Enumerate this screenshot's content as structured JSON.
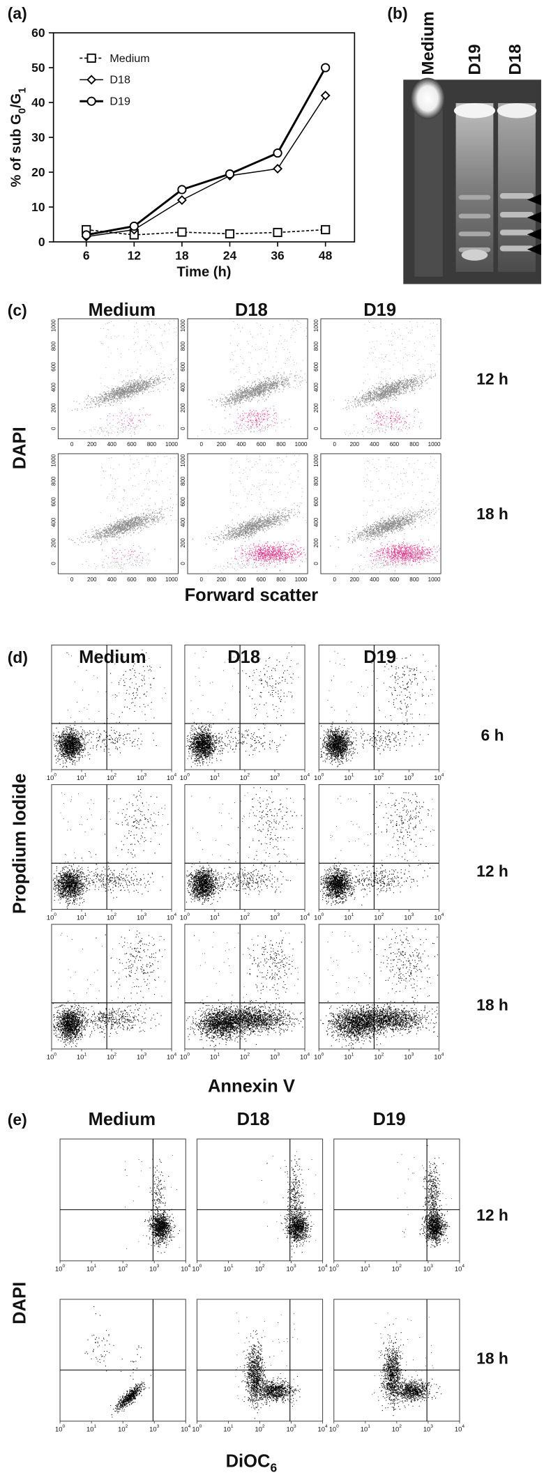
{
  "chart_data": {
    "type": "line",
    "panel_label": "(a)",
    "x_label": "Time (h)",
    "y_label": {
      "text": "% of sub G",
      "sub1": "0",
      "mid": "/G",
      "sub2": "1"
    },
    "categories": [
      "6",
      "12",
      "18",
      "24",
      "36",
      "48"
    ],
    "series": [
      {
        "name": "Medium",
        "color": "#000000",
        "marker": "square",
        "dash": true,
        "values": [
          3.5,
          2,
          2.8,
          2.3,
          2.7,
          3.5
        ]
      },
      {
        "name": "D18",
        "color": "#000000",
        "marker": "diamond",
        "dash": false,
        "values": [
          1.5,
          3.5,
          12,
          19,
          21,
          42
        ]
      },
      {
        "name": "D19",
        "color": "#000000",
        "marker": "circle",
        "dash": false,
        "values": [
          2,
          4.5,
          15,
          19.5,
          25.5,
          50
        ]
      }
    ],
    "ylim": [
      0,
      60
    ],
    "yticks": [
      0,
      10,
      20,
      30,
      40,
      50,
      60
    ],
    "grid": false,
    "legend": "upper left"
  },
  "gel": {
    "panel_label": "(b)",
    "lanes": [
      "Medium",
      "D19",
      "D18"
    ]
  },
  "dapi_fsc": {
    "panel_label": "(c)",
    "conditions": [
      "Medium",
      "D18",
      "D19"
    ],
    "times": [
      "12 h",
      "18 h"
    ],
    "y_label": "DAPI",
    "x_label": "Forward scatter",
    "ticks": [
      "0",
      "200",
      "400",
      "600",
      "800",
      "1000"
    ]
  },
  "annexin_pi": {
    "panel_label": "(d)",
    "conditions": [
      "Medium",
      "D18",
      "D19"
    ],
    "times": [
      "6 h",
      "12 h",
      "18 h"
    ],
    "y_label": "Propdium Iodide",
    "x_label": "Annexin V",
    "tick_base": "10",
    "tick_exponents": [
      "0",
      "1",
      "2",
      "3",
      "4"
    ]
  },
  "dioc_dapi": {
    "panel_label": "(e)",
    "conditions": [
      "Medium",
      "D18",
      "D19"
    ],
    "times": [
      "12 h",
      "18 h"
    ],
    "y_label": "DAPI",
    "x_label": {
      "text": "DiOC",
      "sub": "6"
    },
    "tick_base": "10",
    "tick_exponents": [
      "0",
      "1",
      "2",
      "3",
      "4"
    ]
  }
}
